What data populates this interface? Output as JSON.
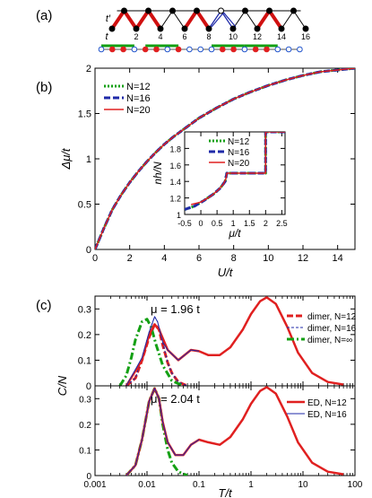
{
  "panels": {
    "a": "(a)",
    "b": "(b)",
    "c": "(c)"
  },
  "lattice": {
    "bond_label_primary": "t",
    "bond_label_secondary": "t′",
    "site_labels": [
      "2",
      "4",
      "6",
      "8",
      "10",
      "12",
      "14",
      "16"
    ],
    "colors": {
      "thick_bond": "#d01010",
      "thin_bond": "#1f2aa8",
      "site": "#000000",
      "green": "#14a014",
      "red_dot": "#e02020",
      "hollow_dot": "#2255cc"
    }
  },
  "chart_data": [
    {
      "id": "b-main",
      "type": "line",
      "xlabel": "U/t",
      "ylabel": "Δμ/t",
      "xlim": [
        0,
        15
      ],
      "ylim": [
        0,
        2
      ],
      "xticks": [
        "0",
        "2",
        "4",
        "6",
        "8",
        "10",
        "12",
        "14"
      ],
      "yticks": [
        "0",
        "0.5",
        "1",
        "1.5",
        "2"
      ],
      "legend": "top-left",
      "series": [
        {
          "name": "N=12",
          "color": "#14a014",
          "style": "dotted",
          "x": [
            0,
            0.5,
            1,
            1.5,
            2,
            2.5,
            3,
            3.5,
            4,
            4.5,
            5,
            6,
            7,
            8,
            9,
            10,
            11,
            12,
            13,
            14,
            15
          ],
          "y": [
            0,
            0.23,
            0.44,
            0.6,
            0.74,
            0.86,
            0.97,
            1.07,
            1.16,
            1.24,
            1.31,
            1.45,
            1.56,
            1.66,
            1.74,
            1.81,
            1.87,
            1.92,
            1.96,
            1.98,
            2.0
          ]
        },
        {
          "name": "N=16",
          "color": "#1f2aa8",
          "style": "dashed",
          "x": [
            0,
            0.5,
            1,
            1.5,
            2,
            2.5,
            3,
            3.5,
            4,
            4.5,
            5,
            6,
            7,
            8,
            9,
            10,
            11,
            12,
            13,
            14,
            15
          ],
          "y": [
            0,
            0.23,
            0.44,
            0.6,
            0.74,
            0.86,
            0.97,
            1.07,
            1.16,
            1.24,
            1.31,
            1.45,
            1.56,
            1.66,
            1.74,
            1.81,
            1.87,
            1.92,
            1.96,
            1.98,
            2.0
          ]
        },
        {
          "name": "N=20",
          "color": "#e02020",
          "style": "solid",
          "x": [
            0,
            0.5,
            1,
            1.5,
            2,
            2.5,
            3,
            3.5,
            4,
            4.5,
            5,
            6,
            7,
            8,
            9,
            10,
            11,
            12,
            13,
            14,
            15
          ],
          "y": [
            0,
            0.23,
            0.44,
            0.6,
            0.74,
            0.86,
            0.97,
            1.07,
            1.16,
            1.24,
            1.31,
            1.45,
            1.56,
            1.66,
            1.74,
            1.81,
            1.87,
            1.92,
            1.96,
            1.98,
            2.0
          ]
        }
      ]
    },
    {
      "id": "b-inset",
      "type": "line",
      "xlabel": "μ/t",
      "ylabel": "nh/N",
      "xlim": [
        -0.5,
        2.6
      ],
      "ylim": [
        1.0,
        2.0
      ],
      "xticks": [
        "-0.5",
        "0",
        "0.5",
        "1",
        "1.5",
        "2",
        "2.5"
      ],
      "yticks": [
        "1",
        "1.2",
        "1.4",
        "1.6",
        "1.8"
      ],
      "legend": "top-left",
      "series": [
        {
          "name": "N=12",
          "color": "#14a014",
          "style": "dotted",
          "x": [
            -0.5,
            -0.2,
            0.1,
            0.4,
            0.6,
            0.75,
            0.8,
            2.0,
            2.0,
            2.6
          ],
          "y": [
            1.06,
            1.1,
            1.17,
            1.25,
            1.32,
            1.4,
            1.5,
            1.5,
            2.0,
            2.0
          ]
        },
        {
          "name": "N=16",
          "color": "#1f2aa8",
          "style": "dashed",
          "x": [
            -0.5,
            -0.2,
            0.1,
            0.4,
            0.6,
            0.75,
            0.8,
            2.0,
            2.0,
            2.6
          ],
          "y": [
            1.06,
            1.1,
            1.17,
            1.25,
            1.32,
            1.4,
            1.5,
            1.5,
            2.0,
            2.0
          ]
        },
        {
          "name": "N=20",
          "color": "#e02020",
          "style": "solid",
          "x": [
            -0.3,
            0.0,
            0.3,
            0.55,
            0.7,
            0.78,
            0.8,
            2.0,
            2.0,
            2.6
          ],
          "y": [
            1.12,
            1.15,
            1.22,
            1.3,
            1.37,
            1.44,
            1.5,
            1.5,
            2.0,
            2.0
          ]
        }
      ]
    },
    {
      "id": "c-top",
      "type": "line",
      "annotation": "μ = 1.96 t",
      "ylabel": "C/N",
      "xscale": "log",
      "xlim": [
        0.001,
        100
      ],
      "ylim": [
        0,
        0.35
      ],
      "yticks": [
        "0",
        "0.1",
        "0.2",
        "0.3"
      ],
      "legend": "top-right",
      "series": [
        {
          "name": "dimer, N=12",
          "color": "#e02020",
          "style": "dashed",
          "x": [
            0.004,
            0.006,
            0.008,
            0.011,
            0.014,
            0.017,
            0.02,
            0.025,
            0.03,
            0.04,
            0.06
          ],
          "y": [
            0.0,
            0.03,
            0.1,
            0.19,
            0.24,
            0.22,
            0.16,
            0.09,
            0.05,
            0.015,
            0.0
          ]
        },
        {
          "name": "dimer, N=16",
          "color": "#1f2aa8",
          "style": "dashed-thin",
          "x": [
            0.004,
            0.006,
            0.008,
            0.011,
            0.014,
            0.016,
            0.02,
            0.025,
            0.03,
            0.04,
            0.06
          ],
          "y": [
            0.0,
            0.03,
            0.11,
            0.21,
            0.27,
            0.25,
            0.17,
            0.09,
            0.05,
            0.015,
            0.0
          ]
        },
        {
          "name": "dimer, N=∞",
          "color": "#14a014",
          "style": "dash-dot",
          "x": [
            0.003,
            0.004,
            0.005,
            0.006,
            0.008,
            0.01,
            0.012,
            0.015,
            0.02,
            0.03,
            0.05
          ],
          "y": [
            0.0,
            0.04,
            0.11,
            0.18,
            0.25,
            0.26,
            0.23,
            0.16,
            0.08,
            0.02,
            0.0
          ]
        },
        {
          "name": "ED, N=12",
          "color": "#e02020",
          "style": "solid-thick",
          "x": [
            0.004,
            0.008,
            0.011,
            0.014,
            0.017,
            0.025,
            0.04,
            0.07,
            0.1,
            0.15,
            0.25,
            0.4,
            0.7,
            1,
            1.5,
            2,
            3,
            5,
            8,
            15,
            30,
            60
          ],
          "y": [
            0.0,
            0.1,
            0.2,
            0.24,
            0.22,
            0.14,
            0.1,
            0.14,
            0.135,
            0.12,
            0.12,
            0.15,
            0.22,
            0.28,
            0.33,
            0.345,
            0.32,
            0.23,
            0.13,
            0.05,
            0.015,
            0.005
          ]
        },
        {
          "name": "ED, N=16",
          "color": "#1f2aa8",
          "style": "solid-thin",
          "x": [
            0.004,
            0.008,
            0.011,
            0.014,
            0.016,
            0.02,
            0.025,
            0.04,
            0.07,
            0.1
          ],
          "y": [
            0.0,
            0.11,
            0.21,
            0.27,
            0.25,
            0.17,
            0.14,
            0.1,
            0.14,
            0.135
          ]
        }
      ]
    },
    {
      "id": "c-bottom",
      "type": "line",
      "annotation": "μ = 2.04 t",
      "xlabel": "T/t",
      "ylabel": "C/N",
      "xscale": "log",
      "xlim": [
        0.001,
        100
      ],
      "ylim": [
        0,
        0.35
      ],
      "xticks": [
        "0.001",
        "0.01",
        "0.1",
        "1",
        "10",
        "100"
      ],
      "yticks": [
        "0",
        "0.1",
        "0.2",
        "0.3"
      ],
      "legend": "top-right",
      "series": [
        {
          "name": "dimer",
          "color": "#14a014",
          "style": "dash-dot",
          "x": [
            0.004,
            0.006,
            0.008,
            0.011,
            0.014,
            0.017,
            0.02,
            0.025,
            0.03,
            0.04,
            0.06
          ],
          "y": [
            0.0,
            0.04,
            0.14,
            0.29,
            0.34,
            0.3,
            0.2,
            0.1,
            0.05,
            0.015,
            0.0
          ]
        },
        {
          "name": "ED, N=12",
          "color": "#e02020",
          "style": "solid-thick",
          "x": [
            0.004,
            0.006,
            0.008,
            0.011,
            0.014,
            0.017,
            0.02,
            0.025,
            0.035,
            0.05,
            0.07,
            0.1,
            0.15,
            0.25,
            0.4,
            0.7,
            1,
            1.5,
            2,
            3,
            5,
            8,
            15,
            30,
            60
          ],
          "y": [
            0.0,
            0.04,
            0.14,
            0.29,
            0.34,
            0.3,
            0.21,
            0.13,
            0.08,
            0.08,
            0.12,
            0.14,
            0.13,
            0.12,
            0.15,
            0.22,
            0.28,
            0.33,
            0.345,
            0.32,
            0.23,
            0.13,
            0.05,
            0.015,
            0.005
          ]
        },
        {
          "name": "ED, N=16",
          "color": "#1f2aa8",
          "style": "solid-thin",
          "x": [
            0.004,
            0.006,
            0.008,
            0.011,
            0.014,
            0.017,
            0.02,
            0.025,
            0.035,
            0.05,
            0.07,
            0.1
          ],
          "y": [
            0.0,
            0.04,
            0.14,
            0.29,
            0.34,
            0.3,
            0.21,
            0.13,
            0.08,
            0.08,
            0.12,
            0.14
          ]
        }
      ]
    }
  ],
  "legend_labels": {
    "b_main": [
      "N=12",
      "N=16",
      "N=20"
    ],
    "b_inset": [
      "N=12",
      "N=16",
      "N=20"
    ],
    "c_top": [
      "dimer, N=12",
      "dimer, N=16",
      "dimer, N=∞"
    ],
    "c_bottom": [
      "ED, N=12",
      "ED, N=16"
    ]
  }
}
